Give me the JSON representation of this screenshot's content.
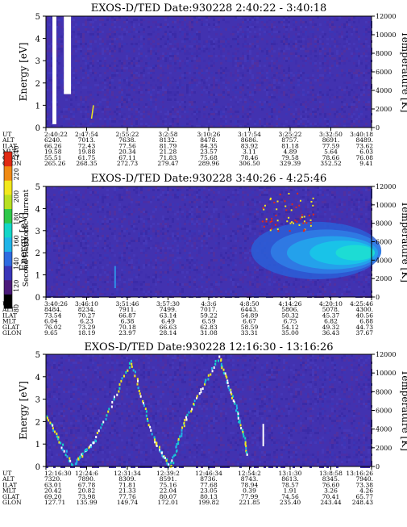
{
  "chart_data": [
    {
      "type": "heatmap",
      "title": "EXOS-D/TED   Date:930228   2:40:22 - 3:40:18",
      "ylabel": "Energy [eV]",
      "ylabel_right": "Temperature [K]",
      "ylim": [
        0,
        5
      ],
      "ylim_right": [
        0,
        12000
      ],
      "yticks": [
        "0",
        "1",
        "2",
        "3",
        "4",
        "5"
      ],
      "yticks_right": [
        "0",
        "2000",
        "4000",
        "6000",
        "8000",
        "10000",
        "12000"
      ],
      "pattern": "quiet",
      "rows": [
        {
          "name": "UT",
          "values": [
            "2:40:22",
            "2:47:54",
            "2:55:22",
            "3:2:58",
            "3:10:26",
            "3:17:54",
            "3:25:22",
            "3:32:50",
            "3:40:18"
          ]
        },
        {
          "name": "ALT",
          "values": [
            "6240.",
            "7013.",
            "7638.",
            "8132.",
            "8478.",
            "8686.",
            "8757.",
            "8691.",
            "8489."
          ]
        },
        {
          "name": "ILAT",
          "values": [
            "66.26",
            "72.43",
            "77.56",
            "81.79",
            "84.35",
            "83.92",
            "81.18",
            "77.59",
            "73.62"
          ]
        },
        {
          "name": "MLT",
          "values": [
            "19.58",
            "19.88",
            "20.34",
            "21.28",
            "23.57",
            "3.11",
            "4.89",
            "5.64",
            "6.03"
          ]
        },
        {
          "name": "GLAT",
          "values": [
            "55.51",
            "61.75",
            "67.11",
            "71.83",
            "75.68",
            "78.46",
            "79.58",
            "78.66",
            "76.08"
          ]
        },
        {
          "name": "GLON",
          "values": [
            "265.26",
            "268.35",
            "272.73",
            "279.47",
            "289.96",
            "306.50",
            "329.39",
            "352.52",
            "9.41"
          ]
        }
      ]
    },
    {
      "type": "heatmap",
      "title": "EXOS-D/TED   Date:930228   3:40:26 - 4:25:46",
      "ylabel": "Energy [eV]",
      "ylabel_right": "Temperature [K]",
      "ylim": [
        0,
        5
      ],
      "ylim_right": [
        0,
        12000
      ],
      "yticks": [
        "0",
        "1",
        "2",
        "3",
        "4",
        "5"
      ],
      "yticks_right": [
        "0",
        "2000",
        "4000",
        "6000",
        "8000",
        "10000",
        "12000"
      ],
      "pattern": "plume",
      "rows": [
        {
          "name": "UT",
          "values": [
            "3:40:26",
            "3:46:10",
            "3:51:46",
            "3:57:30",
            "4:3:6",
            "4:8:50",
            "4:14:26",
            "4:20:10",
            "4:25:46"
          ]
        },
        {
          "name": "ALT",
          "values": [
            "8484.",
            "8234.",
            "7911.",
            "7499.",
            "7017.",
            "6443.",
            "5806.",
            "5078.",
            "4300."
          ]
        },
        {
          "name": "ILAT",
          "values": [
            "73.54",
            "70.27",
            "66.87",
            "63.14",
            "59.22",
            "54.89",
            "50.32",
            "45.37",
            "40.56"
          ]
        },
        {
          "name": "MLT",
          "values": [
            "6.04",
            "6.23",
            "6.38",
            "6.49",
            "6.59",
            "6.67",
            "6.75",
            "6.82",
            "6.88"
          ]
        },
        {
          "name": "GLAT",
          "values": [
            "76.02",
            "73.29",
            "70.18",
            "66.63",
            "62.83",
            "58.59",
            "54.12",
            "49.32",
            "44.73"
          ]
        },
        {
          "name": "GLON",
          "values": [
            "9.65",
            "18.19",
            "23.97",
            "28.14",
            "31.08",
            "33.31",
            "35.00",
            "36.43",
            "37.67"
          ]
        }
      ]
    },
    {
      "type": "heatmap",
      "title": "EXOS-D/TED   Date:930228   12:16:30 - 13:16:26",
      "ylabel": "Energy [eV]",
      "ylabel_right": "Temperature [K]",
      "ylim": [
        0,
        5
      ],
      "ylim_right": [
        0,
        12000
      ],
      "yticks": [
        "0",
        "1",
        "2",
        "3",
        "4",
        "5"
      ],
      "yticks_right": [
        "0",
        "2000",
        "4000",
        "6000",
        "8000",
        "10000",
        "12000"
      ],
      "pattern": "zigzag",
      "rows": [
        {
          "name": "UT",
          "values": [
            "12:16:30",
            "12:24:6",
            "12:31:34",
            "12:39:2",
            "12:46:34",
            "12:54:2",
            "13:1:30",
            "13:8:58",
            "13:16:26"
          ]
        },
        {
          "name": "ALT",
          "values": [
            "7320.",
            "7890.",
            "8309.",
            "8591.",
            "8736.",
            "8743.",
            "8613.",
            "8345.",
            "7940."
          ]
        },
        {
          "name": "ILAT",
          "values": [
            "63.01",
            "67.78",
            "71.81",
            "75.16",
            "77.68",
            "78.94",
            "78.57",
            "76.60",
            "73.38"
          ]
        },
        {
          "name": "MLT",
          "values": [
            "20.42",
            "20.82",
            "21.33",
            "22.04",
            "23.05",
            "0.39",
            "1.91",
            "3.26",
            "4.26"
          ]
        },
        {
          "name": "GLAT",
          "values": [
            "69.20",
            "73.98",
            "77.76",
            "80.07",
            "80.13",
            "77.99",
            "74.56",
            "70.41",
            "65.77"
          ]
        },
        {
          "name": "GLON",
          "values": [
            "127.71",
            "135.99",
            "149.74",
            "172.01",
            "199.82",
            "221.85",
            "235.40",
            "243.44",
            "248.43"
          ]
        }
      ]
    }
  ],
  "colorbar": {
    "label": "Second Harmonic Current",
    "ticks": [
      "80",
      "120",
      "140",
      "160",
      "180",
      "200",
      "220",
      "240"
    ],
    "colors": [
      "#000000",
      "#4b1a7a",
      "#3a36b8",
      "#2f6be0",
      "#1fb4e8",
      "#14d6c8",
      "#2ec84a",
      "#b8e020",
      "#f2e81c",
      "#f08a14",
      "#e02a14"
    ]
  }
}
